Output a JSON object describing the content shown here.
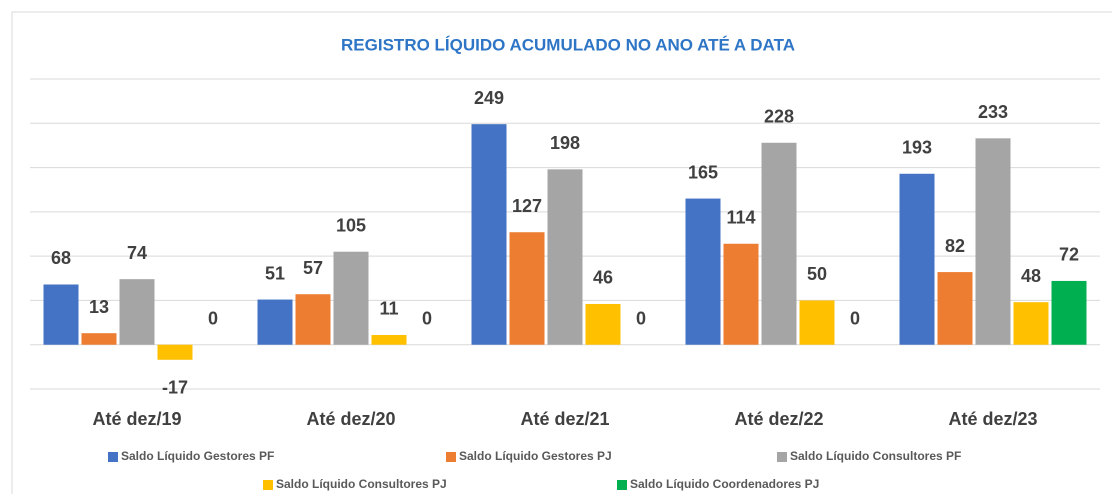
{
  "chart_data": {
    "type": "bar",
    "title": "REGISTRO LÍQUIDO ACUMULADO NO ANO ATÉ A DATA",
    "categories": [
      "Até dez/19",
      "Até dez/20",
      "Até dez/21",
      "Até dez/22",
      "Até dez/23"
    ],
    "series": [
      {
        "name": "Saldo Líquido Gestores PF",
        "color": "#4472c4",
        "values": [
          68,
          51,
          249,
          165,
          193
        ]
      },
      {
        "name": "Saldo Líquido Gestores PJ",
        "color": "#ed7d31",
        "values": [
          13,
          57,
          127,
          114,
          82
        ]
      },
      {
        "name": "Saldo Líquido Consultores PF",
        "color": "#a5a5a5",
        "values": [
          74,
          105,
          198,
          228,
          233
        ]
      },
      {
        "name": "Saldo Líquido Consultores PJ",
        "color": "#ffc000",
        "values": [
          -17,
          11,
          46,
          50,
          48
        ]
      },
      {
        "name": "Saldo Líquido Coordenadores PJ",
        "color": "#00b050",
        "values": [
          0,
          0,
          0,
          0,
          72
        ]
      }
    ],
    "ylim": [
      -50,
      300
    ],
    "yticks": [
      -50,
      0,
      50,
      100,
      150,
      200,
      250,
      300
    ],
    "grid": true
  }
}
